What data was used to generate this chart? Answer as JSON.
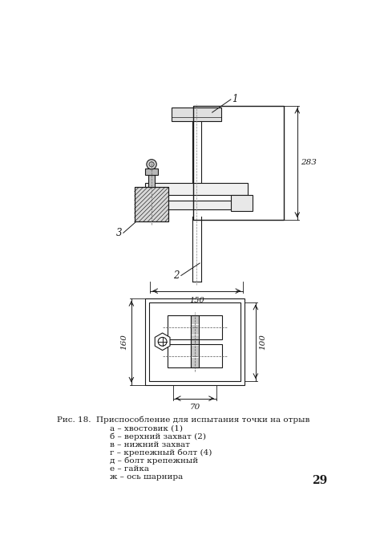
{
  "title": "",
  "caption_line1": "Рис. 18.  Приспособление для испытания точки на отрыв",
  "caption_line2": "а – хвостовик (1)",
  "caption_line3": "б – верхний захват (2)",
  "caption_line4": "в – нижний захват",
  "caption_line5": "г – крепежный болт (4)",
  "caption_line6": "д – болт крепежный",
  "caption_line7": "е – гайка",
  "caption_line8": "ж – ось шарнира",
  "page_number": "29",
  "bg_color": "#ffffff",
  "line_color": "#1a1a1a",
  "text_color": "#1a1a1a",
  "dim_283": "283",
  "dim_150": "150",
  "dim_160": "160",
  "dim_100": "100",
  "dim_70": "70",
  "label_1": "1",
  "label_2": "2",
  "label_3": "3"
}
